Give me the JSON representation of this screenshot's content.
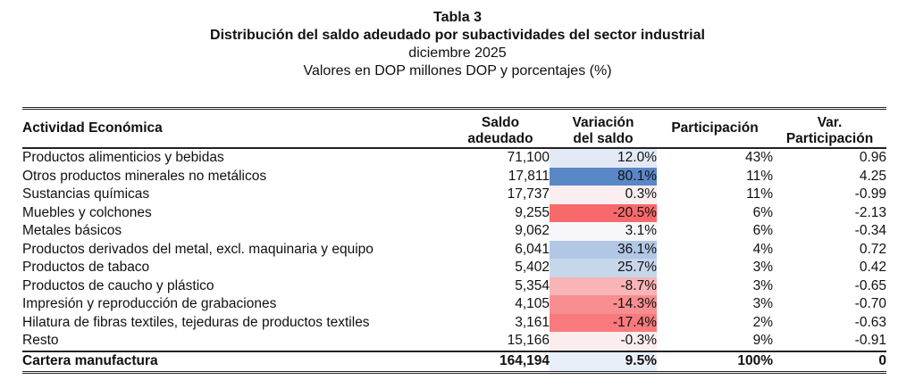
{
  "header": {
    "table_label": "Tabla 3",
    "title": "Distribución del saldo adeudado por subactividades del sector industrial",
    "date": "diciembre 2025",
    "units": "Valores en DOP millones DOP y porcentajes (%)"
  },
  "columns": {
    "activity": "Actividad Económica",
    "saldo_l1": "Saldo",
    "saldo_l2": "adeudado",
    "variacion_l1": "Variación",
    "variacion_l2": "del saldo",
    "participacion": "Participación",
    "var_part_l1": "Var.",
    "var_part_l2": "Participación"
  },
  "rows": [
    {
      "activity": "Productos alimenticios y bebidas",
      "saldo": "71,100",
      "variacion": "12.0%",
      "participacion": "43%",
      "var_participacion": "0.96",
      "heat_color": "#e3eaf6"
    },
    {
      "activity": "Otros productos minerales no metálicos",
      "saldo": "17,811",
      "variacion": "80.1%",
      "participacion": "11%",
      "var_participacion": "4.25",
      "heat_color": "#5a87c6"
    },
    {
      "activity": "Sustancias químicas",
      "saldo": "17,737",
      "variacion": "0.3%",
      "participacion": "11%",
      "var_participacion": "-0.99",
      "heat_color": "#fbeef0"
    },
    {
      "activity": "Muebles y colchones",
      "saldo": "9,255",
      "variacion": "-20.5%",
      "participacion": "6%",
      "var_participacion": "-2.13",
      "heat_color": "#f8696b"
    },
    {
      "activity": "Metales básicos",
      "saldo": "9,062",
      "variacion": "3.1%",
      "participacion": "6%",
      "var_participacion": "-0.34",
      "heat_color": "#f6f6fb"
    },
    {
      "activity": "Productos derivados del metal, excl. maquinaria y equipo",
      "saldo": "6,041",
      "variacion": "36.1%",
      "participacion": "4%",
      "var_participacion": "0.72",
      "heat_color": "#b2c7e5"
    },
    {
      "activity": "Productos de tabaco",
      "saldo": "5,402",
      "variacion": "25.7%",
      "participacion": "3%",
      "var_participacion": "0.42",
      "heat_color": "#c6d6eb"
    },
    {
      "activity": "Productos de caucho y plástico",
      "saldo": "5,354",
      "variacion": "-8.7%",
      "participacion": "3%",
      "var_participacion": "-0.65",
      "heat_color": "#f8b4b7"
    },
    {
      "activity": "Impresión y reproducción de grabaciones",
      "saldo": "4,105",
      "variacion": "-14.3%",
      "participacion": "3%",
      "var_participacion": "-0.70",
      "heat_color": "#f88e90"
    },
    {
      "activity": "Hilatura de fibras textiles, tejeduras de productos textiles",
      "saldo": "3,161",
      "variacion": "-17.4%",
      "participacion": "2%",
      "var_participacion": "-0.63",
      "heat_color": "#f87a7d"
    },
    {
      "activity": "Resto",
      "saldo": "15,166",
      "variacion": "-0.3%",
      "participacion": "9%",
      "var_participacion": "-0.91",
      "heat_color": "#fbecee"
    }
  ],
  "total": {
    "activity": "Cartera manufactura",
    "saldo": "164,194",
    "variacion": "9.5%",
    "participacion": "100%",
    "var_participacion": "0",
    "heat_color": "#e9eff8"
  }
}
